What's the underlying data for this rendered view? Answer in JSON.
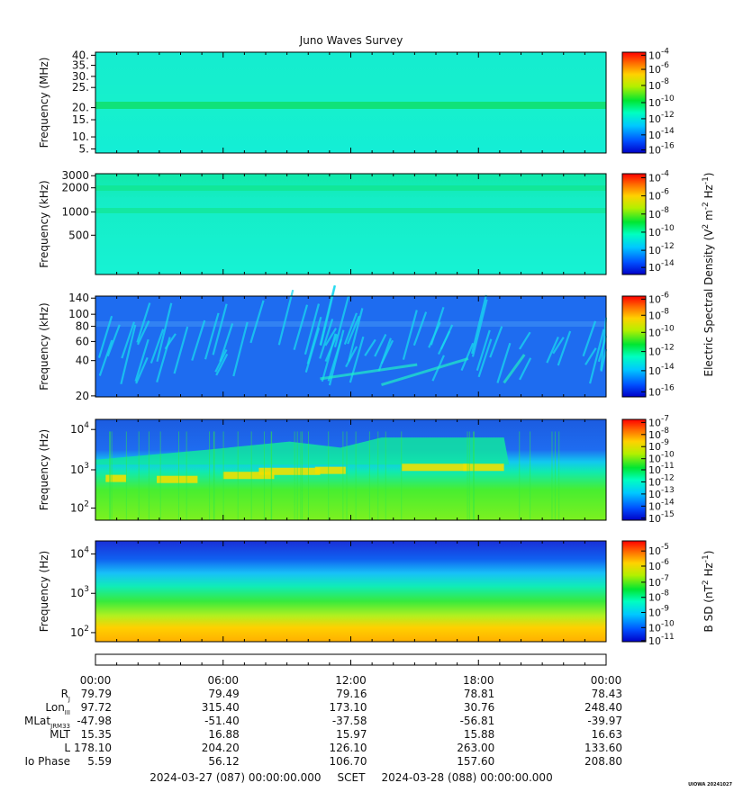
{
  "chart_data": {
    "type": "heatmap",
    "title": "Juno Waves Survey",
    "x_tick_labels": [
      "00:00",
      "06:00",
      "12:00",
      "18:00",
      "00:00"
    ],
    "panels": [
      {
        "ylabel": "Frequency (MHz)",
        "yticks": [
          "40.",
          "35.",
          "30.",
          "25.",
          "20.",
          "15.",
          "10.",
          "5."
        ],
        "colorbar": {
          "base": "10",
          "exponents": [
            "-4",
            "-6",
            "-8",
            "-10",
            "-12",
            "-14",
            "-16"
          ]
        }
      },
      {
        "ylabel": "Frequency (kHz)",
        "yticks": [
          "3000",
          "2000",
          "1000",
          "500"
        ],
        "colorbar": {
          "base": "10",
          "exponents": [
            "-4",
            "-6",
            "-8",
            "-10",
            "-12",
            "-14"
          ]
        }
      },
      {
        "ylabel": "Frequency (kHz)",
        "yticks": [
          "140",
          "100",
          "80",
          "60",
          "40",
          "20"
        ],
        "colorbar": {
          "base": "10",
          "exponents": [
            "-6",
            "-8",
            "-10",
            "-12",
            "-14",
            "-16"
          ]
        }
      },
      {
        "ylabel": "Frequency (Hz)",
        "yticks": [
          {
            "base": "10",
            "exp": "4"
          },
          {
            "base": "10",
            "exp": "3"
          },
          {
            "base": "10",
            "exp": "2"
          }
        ],
        "colorbar": {
          "base": "10",
          "exponents": [
            "-7",
            "-8",
            "-9",
            "-10",
            "-11",
            "-12",
            "-13",
            "-14",
            "-15"
          ]
        }
      },
      {
        "ylabel": "Frequency (Hz)",
        "yticks": [
          {
            "base": "10",
            "exp": "4"
          },
          {
            "base": "10",
            "exp": "3"
          },
          {
            "base": "10",
            "exp": "2"
          }
        ],
        "colorbar": {
          "base": "10",
          "exponents": [
            "-5",
            "-6",
            "-7",
            "-8",
            "-9",
            "-10",
            "-11"
          ]
        }
      }
    ],
    "colorbar_label_electric": {
      "pre": "Electric Spectral Density (V",
      "s1": "2",
      "mid": " m",
      "s2": "-2",
      "mid2": " Hz",
      "s3": "-1",
      "post": ")"
    },
    "colorbar_label_magnetic": {
      "pre": "B SD (nT",
      "s1": "2",
      "mid": " Hz",
      "s2": "-1",
      "post": ")"
    },
    "ephemeris": {
      "rows": [
        {
          "label": "R",
          "sub": "J",
          "values": [
            "79.79",
            "79.49",
            "79.16",
            "78.81",
            "78.43"
          ]
        },
        {
          "label": "Lon",
          "sub": "III",
          "values": [
            "97.72",
            "315.40",
            "173.10",
            "30.76",
            "248.40"
          ]
        },
        {
          "label": "MLat",
          "sub": "JRM33",
          "values": [
            "-47.98",
            "-51.40",
            "-37.58",
            "-56.81",
            "-39.97"
          ]
        },
        {
          "label": "MLT",
          "sub": "",
          "values": [
            "15.35",
            "16.88",
            "15.97",
            "15.88",
            "16.63"
          ]
        },
        {
          "label": "L",
          "sub": "",
          "values": [
            "178.10",
            "204.20",
            "126.10",
            "263.00",
            "133.60"
          ]
        },
        {
          "label": "Io Phase",
          "sub": "",
          "values": [
            "5.59",
            "56.12",
            "106.70",
            "157.60",
            "208.80"
          ]
        }
      ]
    },
    "footer": {
      "start": "2024-03-27 (087) 00:00:00.000",
      "scet": "SCET",
      "end": "2024-03-28 (088) 00:00:00.000"
    },
    "stamp": "UIOWA 20241027",
    "colors": {
      "background_panel1": "#16efd2",
      "background_panel3": "#1e6cf0",
      "colorbar_stops": [
        "#0000d8",
        "#00b0ff",
        "#00ffd0",
        "#00e000",
        "#c0f000",
        "#ffe000",
        "#ff7000",
        "#ff0000"
      ]
    }
  }
}
